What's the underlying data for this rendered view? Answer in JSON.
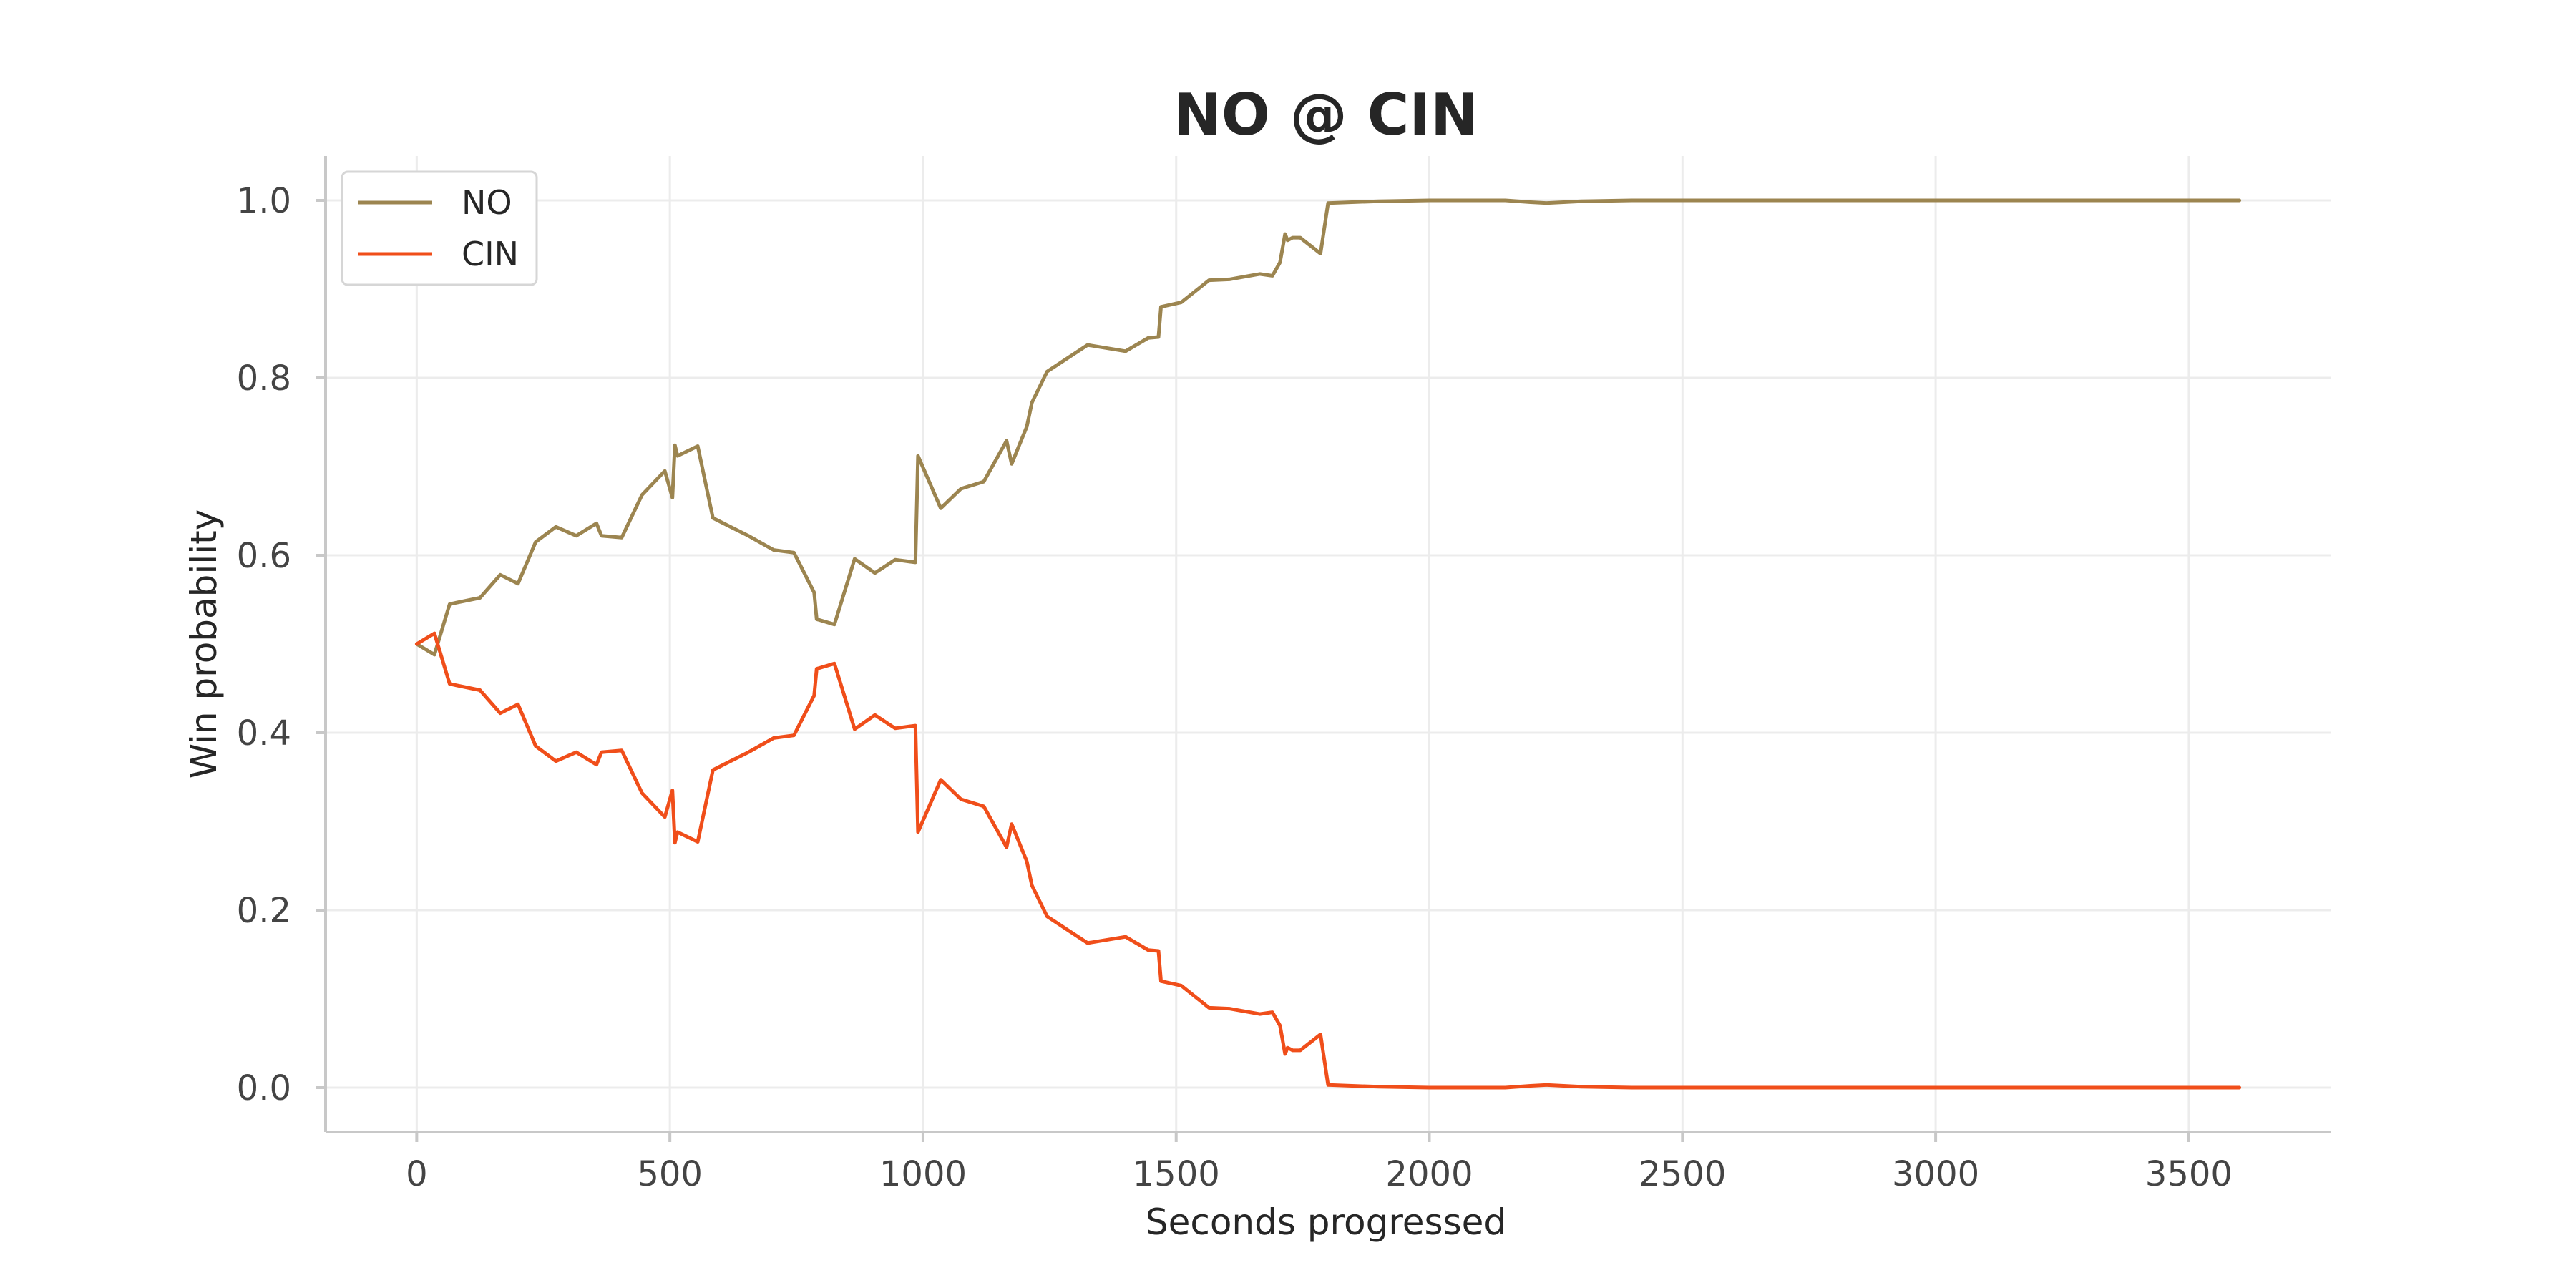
{
  "chart_data": {
    "type": "line",
    "title": "NO @ CIN",
    "xlabel": "Seconds progressed",
    "ylabel": "Win probability",
    "xlim": [
      -180,
      3780
    ],
    "ylim": [
      -0.05,
      1.05
    ],
    "xticks": [
      0,
      500,
      1000,
      1500,
      2000,
      2500,
      3000,
      3500
    ],
    "yticks": [
      0.0,
      0.2,
      0.4,
      0.6,
      0.8,
      1.0
    ],
    "xtick_labels": [
      "0",
      "500",
      "1000",
      "1500",
      "2000",
      "2500",
      "3000",
      "3500"
    ],
    "ytick_labels": [
      "0.0",
      "0.2",
      "0.4",
      "0.6",
      "0.8",
      "1.0"
    ],
    "grid": true,
    "legend": "top-left",
    "series": [
      {
        "name": "NO",
        "color": "#9c8550",
        "x": [
          0,
          35,
          65,
          125,
          165,
          200,
          235,
          275,
          315,
          355,
          365,
          405,
          445,
          490,
          505,
          510,
          515,
          555,
          585,
          655,
          705,
          745,
          785,
          790,
          825,
          865,
          905,
          945,
          985,
          990,
          1035,
          1075,
          1120,
          1165,
          1175,
          1205,
          1215,
          1245,
          1325,
          1400,
          1445,
          1465,
          1470,
          1510,
          1565,
          1605,
          1665,
          1690,
          1705,
          1715,
          1720,
          1730,
          1745,
          1785,
          1800,
          1900,
          2000,
          2150,
          2200,
          2230,
          2300,
          2400,
          2600,
          3000,
          3600
        ],
        "y": [
          0.5,
          0.488,
          0.545,
          0.552,
          0.578,
          0.568,
          0.615,
          0.632,
          0.622,
          0.636,
          0.622,
          0.62,
          0.668,
          0.695,
          0.665,
          0.724,
          0.712,
          0.723,
          0.642,
          0.622,
          0.606,
          0.603,
          0.558,
          0.528,
          0.522,
          0.596,
          0.58,
          0.595,
          0.592,
          0.712,
          0.653,
          0.675,
          0.683,
          0.729,
          0.703,
          0.745,
          0.772,
          0.807,
          0.837,
          0.83,
          0.845,
          0.846,
          0.88,
          0.885,
          0.91,
          0.911,
          0.917,
          0.915,
          0.93,
          0.962,
          0.955,
          0.958,
          0.958,
          0.94,
          0.997,
          0.999,
          1.0,
          1.0,
          0.998,
          0.997,
          0.999,
          1.0,
          1.0,
          1.0,
          1.0
        ]
      },
      {
        "name": "CIN",
        "color": "#f04e1a",
        "x": [
          0,
          35,
          65,
          125,
          165,
          200,
          235,
          275,
          315,
          355,
          365,
          405,
          445,
          490,
          505,
          510,
          515,
          555,
          585,
          655,
          705,
          745,
          785,
          790,
          825,
          865,
          905,
          945,
          985,
          990,
          1035,
          1075,
          1120,
          1165,
          1175,
          1205,
          1215,
          1245,
          1325,
          1400,
          1445,
          1465,
          1470,
          1510,
          1565,
          1605,
          1665,
          1690,
          1705,
          1715,
          1720,
          1730,
          1745,
          1785,
          1800,
          1900,
          2000,
          2150,
          2200,
          2230,
          2300,
          2400,
          2600,
          3000,
          3600
        ],
        "y": [
          0.5,
          0.512,
          0.455,
          0.448,
          0.422,
          0.432,
          0.385,
          0.368,
          0.378,
          0.364,
          0.378,
          0.38,
          0.332,
          0.305,
          0.335,
          0.276,
          0.288,
          0.277,
          0.358,
          0.378,
          0.394,
          0.397,
          0.442,
          0.472,
          0.478,
          0.404,
          0.42,
          0.405,
          0.408,
          0.288,
          0.347,
          0.325,
          0.317,
          0.271,
          0.297,
          0.255,
          0.228,
          0.193,
          0.163,
          0.17,
          0.155,
          0.154,
          0.12,
          0.115,
          0.09,
          0.089,
          0.083,
          0.085,
          0.07,
          0.038,
          0.045,
          0.042,
          0.042,
          0.06,
          0.003,
          0.001,
          0.0,
          0.0,
          0.002,
          0.003,
          0.001,
          0.0,
          0.0,
          0.0,
          0.0
        ]
      }
    ]
  }
}
